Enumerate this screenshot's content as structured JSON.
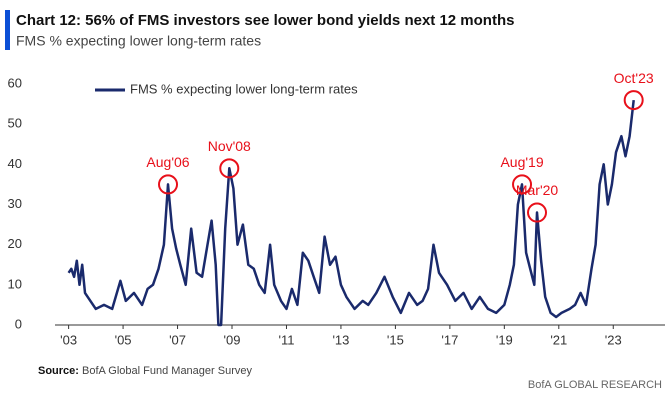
{
  "chart_data": {
    "type": "line",
    "title": "Chart 12: 56% of FMS investors see lower bond yields next 12 months",
    "subtitle": "FMS % expecting lower long-term rates",
    "source_label": "Source:",
    "source": "BofA Global Fund Manager Survey",
    "footer": "BofA GLOBAL RESEARCH",
    "xlim": [
      2002.5,
      2024.9
    ],
    "ylim": [
      0,
      60
    ],
    "yticks": [
      0,
      10,
      20,
      30,
      40,
      50,
      60
    ],
    "xticks": [
      {
        "value": 2003,
        "label": "'03"
      },
      {
        "value": 2005,
        "label": "'05"
      },
      {
        "value": 2007,
        "label": "'07"
      },
      {
        "value": 2009,
        "label": "'09"
      },
      {
        "value": 2011,
        "label": "'11"
      },
      {
        "value": 2013,
        "label": "'13"
      },
      {
        "value": 2015,
        "label": "'15"
      },
      {
        "value": 2017,
        "label": "'17"
      },
      {
        "value": 2019,
        "label": "'19"
      },
      {
        "value": 2021,
        "label": "'21"
      },
      {
        "value": 2023,
        "label": "'23"
      }
    ],
    "grid": false,
    "legend": "top-left",
    "series": [
      {
        "name": "FMS % expecting lower long-term rates",
        "color": "#1a2a6c",
        "x": [
          2003.0,
          2003.1,
          2003.2,
          2003.3,
          2003.4,
          2003.5,
          2003.6,
          2003.8,
          2004.0,
          2004.3,
          2004.6,
          2004.9,
          2005.1,
          2005.4,
          2005.7,
          2005.9,
          2006.1,
          2006.3,
          2006.5,
          2006.65,
          2006.8,
          2006.95,
          2007.1,
          2007.3,
          2007.5,
          2007.7,
          2007.9,
          2008.1,
          2008.25,
          2008.4,
          2008.5,
          2008.6,
          2008.75,
          2008.9,
          2009.05,
          2009.2,
          2009.4,
          2009.6,
          2009.8,
          2010.0,
          2010.2,
          2010.4,
          2010.55,
          2010.8,
          2011.0,
          2011.2,
          2011.4,
          2011.6,
          2011.8,
          2012.0,
          2012.2,
          2012.4,
          2012.6,
          2012.8,
          2013.0,
          2013.2,
          2013.5,
          2013.8,
          2014.0,
          2014.3,
          2014.6,
          2014.9,
          2015.2,
          2015.5,
          2015.8,
          2016.0,
          2016.2,
          2016.4,
          2016.6,
          2016.9,
          2017.2,
          2017.5,
          2017.8,
          2018.1,
          2018.4,
          2018.7,
          2019.0,
          2019.2,
          2019.35,
          2019.5,
          2019.65,
          2019.8,
          2019.95,
          2020.1,
          2020.2,
          2020.35,
          2020.5,
          2020.7,
          2020.9,
          2021.1,
          2021.4,
          2021.6,
          2021.8,
          2022.0,
          2022.2,
          2022.35,
          2022.5,
          2022.65,
          2022.8,
          2022.95,
          2023.1,
          2023.3,
          2023.45,
          2023.6,
          2023.75
        ],
        "values": [
          13,
          14,
          12,
          16,
          10,
          15,
          8,
          6,
          4,
          5,
          4,
          11,
          6,
          8,
          5,
          9,
          10,
          14,
          20,
          35,
          24,
          19,
          15,
          10,
          24,
          13,
          12,
          20,
          26,
          15,
          0,
          0,
          24,
          39,
          34,
          20,
          25,
          15,
          14,
          10,
          8,
          20,
          10,
          6,
          4,
          9,
          5,
          18,
          16,
          12,
          8,
          22,
          15,
          17,
          10,
          7,
          4,
          6,
          5,
          8,
          12,
          7,
          3,
          8,
          5,
          6,
          9,
          20,
          13,
          10,
          6,
          8,
          4,
          7,
          4,
          3,
          5,
          10,
          15,
          30,
          35,
          18,
          14,
          10,
          28,
          16,
          7,
          3,
          2,
          3,
          4,
          5,
          8,
          5,
          14,
          20,
          35,
          40,
          30,
          35,
          43,
          47,
          42,
          47,
          56
        ]
      }
    ],
    "annotations": [
      {
        "label": "Aug'06",
        "x": 2006.65,
        "y": 35
      },
      {
        "label": "Nov'08",
        "x": 2008.9,
        "y": 39
      },
      {
        "label": "Aug'19",
        "x": 2019.65,
        "y": 35
      },
      {
        "label": "Mar'20",
        "x": 2020.2,
        "y": 28
      },
      {
        "label": "Oct'23",
        "x": 2023.75,
        "y": 56
      }
    ],
    "annotation_color": "#e8101a"
  }
}
